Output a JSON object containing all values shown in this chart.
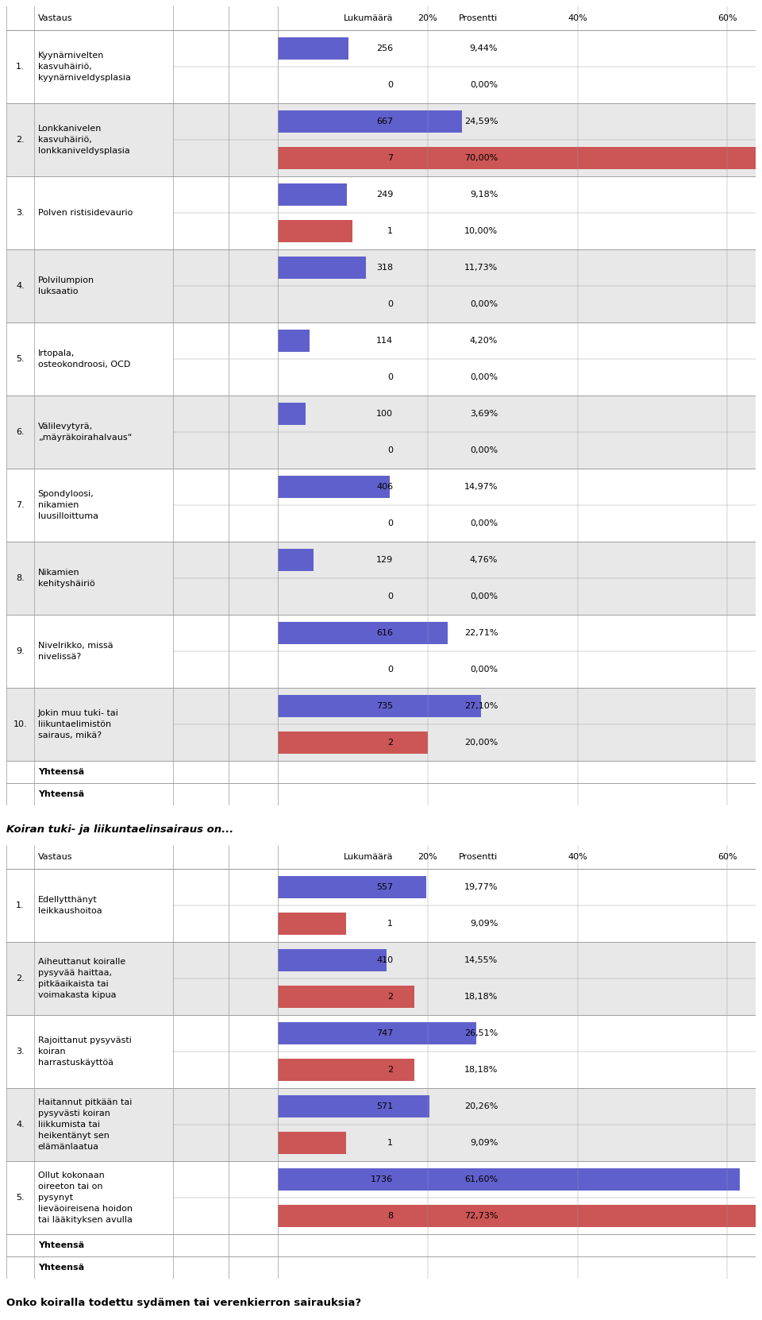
{
  "title2": "Koiran tuki- ja liikuntaelinsairaus on...",
  "title3": "Onko koiralla todettu sydämen tai verenkierron sairauksia?",
  "table1_rows": [
    {
      "num": "1.",
      "label": [
        "Kyynärnivelten",
        "kasvuhäiriö,",
        "kyynärniveldysplasia"
      ],
      "v1": 256,
      "p1": "9,44%",
      "b1": 9.44,
      "v2": 0,
      "p2": "0,00%",
      "b2": 0.0
    },
    {
      "num": "2.",
      "label": [
        "Lonkkanivelen",
        "kasvuhäiriö,",
        "lonkkaniveldysplasia"
      ],
      "v1": 667,
      "p1": "24,59%",
      "b1": 24.59,
      "v2": 7,
      "p2": "70,00%",
      "b2": 70.0
    },
    {
      "num": "3.",
      "label": [
        "Polven ristisidevaurio"
      ],
      "v1": 249,
      "p1": "9,18%",
      "b1": 9.18,
      "v2": 1,
      "p2": "10,00%",
      "b2": 10.0
    },
    {
      "num": "4.",
      "label": [
        "Polvilumpion",
        "luksaatio"
      ],
      "v1": 318,
      "p1": "11,73%",
      "b1": 11.73,
      "v2": 0,
      "p2": "0,00%",
      "b2": 0.0
    },
    {
      "num": "5.",
      "label": [
        "Irtopala,",
        "osteokondroosi, OCD"
      ],
      "v1": 114,
      "p1": "4,20%",
      "b1": 4.2,
      "v2": 0,
      "p2": "0,00%",
      "b2": 0.0
    },
    {
      "num": "6.",
      "label": [
        "Välilevytyrä,",
        "„mäyräkoirahalvaus“"
      ],
      "v1": 100,
      "p1": "3,69%",
      "b1": 3.69,
      "v2": 0,
      "p2": "0,00%",
      "b2": 0.0
    },
    {
      "num": "7.",
      "label": [
        "Spondyloosi,",
        "nikamien",
        "luusilloittuma"
      ],
      "v1": 406,
      "p1": "14,97%",
      "b1": 14.97,
      "v2": 0,
      "p2": "0,00%",
      "b2": 0.0
    },
    {
      "num": "8.",
      "label": [
        "Nikamien",
        "kehityshäiriö"
      ],
      "v1": 129,
      "p1": "4,76%",
      "b1": 4.76,
      "v2": 0,
      "p2": "0,00%",
      "b2": 0.0
    },
    {
      "num": "9.",
      "label": [
        "Nivelrikko, missä",
        "nivelissä?"
      ],
      "v1": 616,
      "p1": "22,71%",
      "b1": 22.71,
      "v2": 0,
      "p2": "0,00%",
      "b2": 0.0
    },
    {
      "num": "10.",
      "label": [
        "Jokin muu tuki- tai",
        "liikuntaelimistön",
        "sairaus, mikä?"
      ],
      "v1": 735,
      "p1": "27,10%",
      "b1": 27.1,
      "v2": 2,
      "p2": "20,00%",
      "b2": 20.0
    }
  ],
  "table2_rows": [
    {
      "num": "1.",
      "label": [
        "Edellytthänyt",
        "leikkaushoitoa"
      ],
      "v1": 557,
      "p1": "19,77%",
      "b1": 19.77,
      "v2": 1,
      "p2": "9,09%",
      "b2": 9.09
    },
    {
      "num": "2.",
      "label": [
        "Aiheuttanut koiralle",
        "pysyvää haittaa,",
        "pitkäaikaista tai",
        "voimakasta kipua"
      ],
      "v1": 410,
      "p1": "14,55%",
      "b1": 14.55,
      "v2": 2,
      "p2": "18,18%",
      "b2": 18.18
    },
    {
      "num": "3.",
      "label": [
        "Rajoittanut pysyvästi",
        "koiran",
        "harrastuskäyttöä"
      ],
      "v1": 747,
      "p1": "26,51%",
      "b1": 26.51,
      "v2": 2,
      "p2": "18,18%",
      "b2": 18.18
    },
    {
      "num": "4.",
      "label": [
        "Haitannut pitkään tai",
        "pysyvästi koiran",
        "liikkumista tai",
        "heikentänyt sen",
        "elämänlaatua"
      ],
      "v1": 571,
      "p1": "20,26%",
      "b1": 20.26,
      "v2": 1,
      "p2": "9,09%",
      "b2": 9.09
    },
    {
      "num": "5.",
      "label": [
        "Ollut kokonaan",
        "oireeton tai on",
        "pysynyt",
        "lieväoireisena hoidon",
        "tai lääkityksen avulla"
      ],
      "v1": 1736,
      "p1": "61,60%",
      "b1": 61.6,
      "v2": 8,
      "p2": "72,73%",
      "b2": 72.73
    }
  ],
  "bar_blue": "#6060cc",
  "bar_red": "#cc5555",
  "grid_color": "#999999",
  "row_even": "#ffffff",
  "row_odd": "#e8e8e8",
  "font_size": 8.0,
  "header_fs": 8.0,
  "title_fs": 9.5
}
